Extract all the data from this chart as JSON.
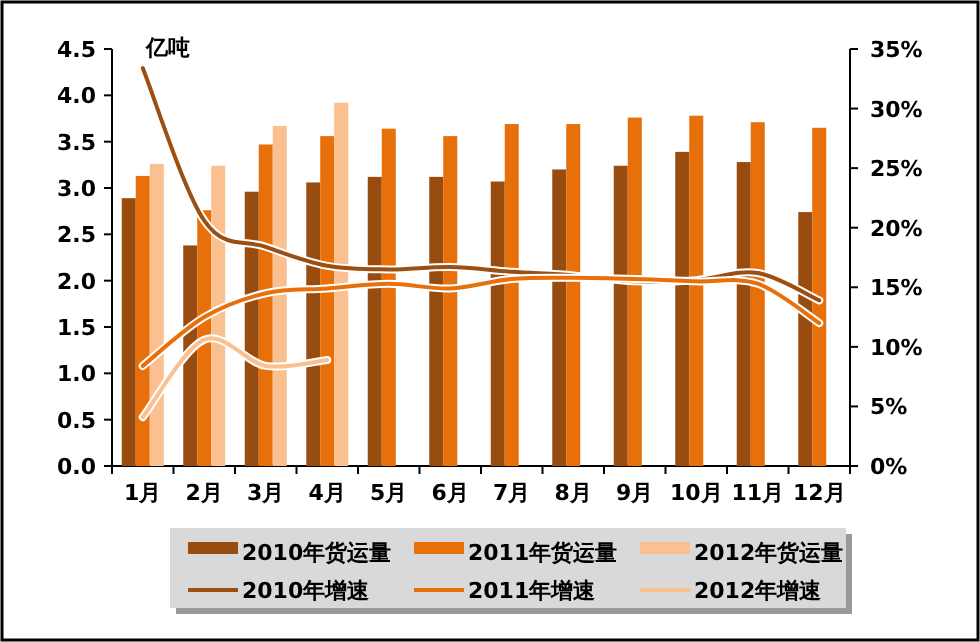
{
  "chart_data": {
    "type": "bar",
    "ylabel": "亿吨",
    "categories": [
      "1月",
      "2月",
      "3月",
      "4月",
      "5月",
      "6月",
      "7月",
      "8月",
      "9月",
      "10月",
      "11月",
      "12月"
    ],
    "ylim": [
      0,
      4.5
    ],
    "yticks": [
      {
        "value": 0,
        "label": "0.0"
      },
      {
        "value": 0.5,
        "label": "0.5"
      },
      {
        "value": 1,
        "label": "1.0"
      },
      {
        "value": 1.5,
        "label": "1.5"
      },
      {
        "value": 2,
        "label": "2.0"
      },
      {
        "value": 2.5,
        "label": "2.5"
      },
      {
        "value": 3,
        "label": "3.0"
      },
      {
        "value": 3.5,
        "label": "3.5"
      },
      {
        "value": 4,
        "label": "4.0"
      },
      {
        "value": 4.5,
        "label": "4.5"
      }
    ],
    "y2lim": [
      0,
      35
    ],
    "y2ticks": [
      {
        "value": 0,
        "label": "0%"
      },
      {
        "value": 5,
        "label": "5%"
      },
      {
        "value": 10,
        "label": "10%"
      },
      {
        "value": 15,
        "label": "15%"
      },
      {
        "value": 20,
        "label": "20%"
      },
      {
        "value": 25,
        "label": "25%"
      },
      {
        "value": 30,
        "label": "30%"
      },
      {
        "value": 35,
        "label": "35%"
      }
    ],
    "legend": "bottom",
    "series": [
      {
        "name": "2010年货运量",
        "color": "#994c10",
        "values": [
          2.89,
          2.38,
          2.96,
          3.06,
          3.12,
          3.12,
          3.07,
          3.2,
          3.24,
          3.39,
          3.28,
          2.74
        ]
      },
      {
        "name": "2011年货运量",
        "color": "#e8700a",
        "values": [
          3.13,
          2.76,
          3.47,
          3.56,
          3.64,
          3.56,
          3.69,
          3.69,
          3.76,
          3.78,
          3.71,
          3.65
        ]
      },
      {
        "name": "2012年货运量",
        "color": "#fac08f",
        "values": [
          3.26,
          3.24,
          3.67,
          3.92,
          null,
          null,
          null,
          null,
          null,
          null,
          null,
          null
        ]
      },
      {
        "name": "2010年增速",
        "type": "line",
        "axis": "y2",
        "color": "#9c4f12",
        "values": [
          33.4,
          20.6,
          18.4,
          16.8,
          16.5,
          16.7,
          16.3,
          16.0,
          15.5,
          15.6,
          16.2,
          13.9
        ]
      },
      {
        "name": "2011年增速",
        "type": "line",
        "axis": "y2",
        "color": "#e8700a",
        "values": [
          8.4,
          12.5,
          14.5,
          14.9,
          15.3,
          14.9,
          15.7,
          15.8,
          15.7,
          15.5,
          15.3,
          12.0
        ]
      },
      {
        "name": "2012年增速",
        "type": "line",
        "axis": "y2",
        "color": "#fac090",
        "values": [
          4.1,
          10.6,
          8.4,
          8.9,
          null,
          null,
          null,
          null,
          null,
          null,
          null,
          null
        ]
      }
    ]
  }
}
